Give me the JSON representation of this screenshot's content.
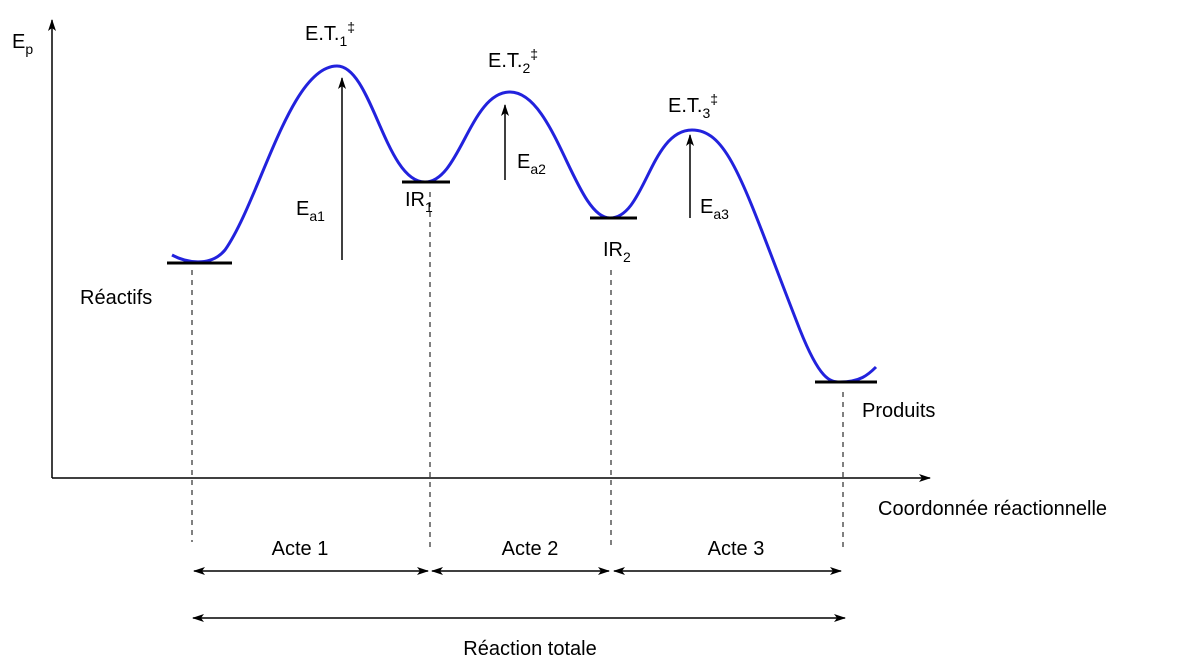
{
  "axes": {
    "y_label": {
      "text": "E",
      "sub": "p"
    },
    "x_label": "Coordonnée réactionnelle"
  },
  "transition_states": [
    {
      "text": "E.T.",
      "sub": "1",
      "sup": "‡"
    },
    {
      "text": "E.T.",
      "sub": "2",
      "sup": "‡"
    },
    {
      "text": "E.T.",
      "sub": "3",
      "sup": "‡"
    }
  ],
  "intermediates": [
    {
      "text": "IR",
      "sub": "1"
    },
    {
      "text": "IR",
      "sub": "2"
    }
  ],
  "reactants": "Réactifs",
  "products": "Produits",
  "activation_energies": [
    {
      "text": "E",
      "sub": "a1"
    },
    {
      "text": "E",
      "sub": "a2"
    },
    {
      "text": "E",
      "sub": "a3"
    }
  ],
  "steps": [
    "Acte 1",
    "Acte 2",
    "Acte 3"
  ],
  "total": "Réaction totale"
}
